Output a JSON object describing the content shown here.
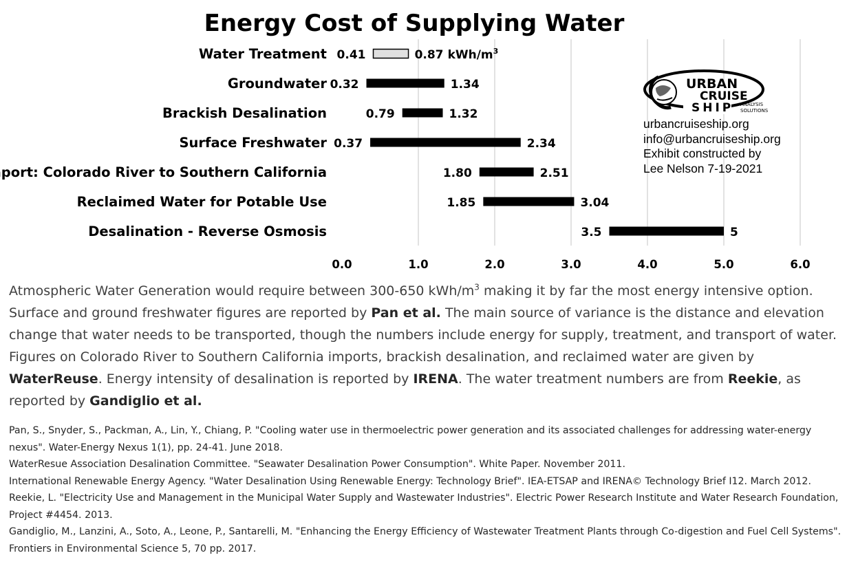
{
  "chart_data": {
    "type": "bar",
    "subtype": "floating-range",
    "title": "Energy Cost of Supplying Water",
    "unit_label": "kWh/m",
    "unit_superscript": "3",
    "xlim": [
      0,
      6
    ],
    "xticks": [
      "0.0",
      "1.0",
      "2.0",
      "3.0",
      "4.0",
      "5.0",
      "6.0"
    ],
    "grid": "vertical",
    "categories": [
      "Water Treatment",
      "Groundwater",
      "Brackish Desalination",
      "Surface Freshwater",
      "Import: Colorado River to Southern California",
      "Reclaimed Water for Potable Use",
      "Desalination - Reverse Osmosis"
    ],
    "low": [
      0.41,
      0.32,
      0.79,
      0.37,
      1.8,
      1.85,
      3.5
    ],
    "high": [
      0.87,
      1.34,
      1.32,
      2.34,
      2.51,
      3.04,
      5
    ],
    "low_labels": [
      "0.41",
      "0.32",
      "0.79",
      "0.37",
      "1.80",
      "1.85",
      "3.5"
    ],
    "high_labels": [
      "0.87",
      "1.34",
      "1.32",
      "2.34",
      "2.51",
      "3.04",
      "5"
    ],
    "fills": [
      "#e0e0e0",
      "#000000",
      "#000000",
      "#000000",
      "#000000",
      "#000000",
      "#000000"
    ]
  },
  "logo": {
    "line1": "URBAN",
    "line2": "CRUISE",
    "line3": "SHIP",
    "tag1": "ANALYSIS",
    "tag2": "SOLUTIONS"
  },
  "info": {
    "website": "urbancruiseship.org",
    "email": "info@urbancruiseship.org",
    "credit1": "Exhibit constructed by",
    "credit2": "Lee Nelson 7-19-2021"
  },
  "paragraph": {
    "s1a": "Atmospheric Water Generation would require between 300-650 kWh/m",
    "s1sup": "3",
    "s1b": " making it by far the most energy intensive option. Surface and ground freshwater figures are reported by ",
    "pan": "Pan et al.",
    "s2": " The main source of variance is the distance and elevation change that water needs to be transported, though the numbers include energy for supply, treatment, and transport of water. Figures on Colorado River to Southern California imports, brackish desalination, and reclaimed water are given by ",
    "waterreuse": "WaterReuse",
    "s3": ". Energy intensity of desalination is reported by ",
    "irena": "IRENA",
    "s4": ". The water treatment numbers are from ",
    "reekie": "Reekie",
    "s5": ", as reported by ",
    "gandiglio": "Gandiglio et al."
  },
  "references": [
    "Pan, S., Snyder, S., Packman, A., Lin, Y., Chiang, P. \"Cooling water use in thermoelectric power generation and its associated challenges for addressing water-energy nexus\". Water-Energy Nexus 1(1), pp. 24-41. June 2018.",
    "WaterResue Association Desalination Committee. \"Seawater Desalination Power Consumption\". White Paper. November 2011.",
    "International Renewable Energy Agency. \"Water Desalination Using Renewable Energy: Technology Brief\". IEA-ETSAP and IRENA© Technology Brief I12. March 2012.",
    "Reekie, L. \"Electricity Use and Management in the Municipal Water Supply and Wastewater Industries\". Electric Power Research Institute and Water Research Foundation, Project #4454. 2013.",
    "Gandiglio, M., Lanzini, A., Soto, A., Leone, P., Santarelli, M. \"Enhancing the Energy Efficiency of Wastewater Treatment Plants through Co-digestion and Fuel Cell Systems\". Frontiers in Environmental Science 5, 70 pp. 2017."
  ]
}
